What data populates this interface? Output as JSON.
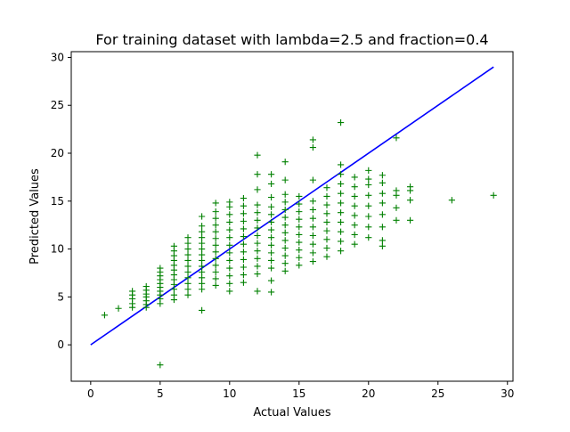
{
  "chart_data": {
    "type": "scatter",
    "title": "For training dataset with lambda=2.5 and fraction=0.4",
    "xlabel": "Actual Values",
    "ylabel": "Predicted Values",
    "xlim": [
      -1.4,
      30.4
    ],
    "ylim": [
      -3.8,
      30.6
    ],
    "xticks": [
      0,
      5,
      10,
      15,
      20,
      25,
      30
    ],
    "yticks": [
      0,
      5,
      10,
      15,
      20,
      25,
      30
    ],
    "grid": false,
    "legend": "none",
    "series": [
      {
        "kind": "points",
        "marker": "+",
        "color": "#008000",
        "points": [
          [
            1,
            3.1
          ],
          [
            2,
            3.8
          ],
          [
            3,
            3.9
          ],
          [
            3,
            4.3
          ],
          [
            3,
            4.8
          ],
          [
            3,
            5.2
          ],
          [
            3,
            5.6
          ],
          [
            4,
            3.9
          ],
          [
            4,
            4.2
          ],
          [
            4,
            4.6
          ],
          [
            4,
            5.0
          ],
          [
            4,
            5.3
          ],
          [
            4,
            5.7
          ],
          [
            4,
            6.1
          ],
          [
            5,
            -2.1
          ],
          [
            5,
            4.3
          ],
          [
            5,
            4.8
          ],
          [
            5,
            5.2
          ],
          [
            5,
            5.6
          ],
          [
            5,
            6.0
          ],
          [
            5,
            6.4
          ],
          [
            5,
            6.8
          ],
          [
            5,
            7.2
          ],
          [
            5,
            7.6
          ],
          [
            5,
            8.0
          ],
          [
            6,
            4.7
          ],
          [
            6,
            5.2
          ],
          [
            6,
            5.8
          ],
          [
            6,
            6.3
          ],
          [
            6,
            6.8
          ],
          [
            6,
            7.3
          ],
          [
            6,
            7.8
          ],
          [
            6,
            8.3
          ],
          [
            6,
            8.8
          ],
          [
            6,
            9.3
          ],
          [
            6,
            9.8
          ],
          [
            6,
            10.3
          ],
          [
            7,
            5.2
          ],
          [
            7,
            5.8
          ],
          [
            7,
            6.4
          ],
          [
            7,
            7.0
          ],
          [
            7,
            7.6
          ],
          [
            7,
            8.2
          ],
          [
            7,
            8.8
          ],
          [
            7,
            9.4
          ],
          [
            7,
            10.0
          ],
          [
            7,
            10.6
          ],
          [
            7,
            11.2
          ],
          [
            8,
            3.6
          ],
          [
            8,
            5.8
          ],
          [
            8,
            6.4
          ],
          [
            8,
            7.0
          ],
          [
            8,
            7.6
          ],
          [
            8,
            8.2
          ],
          [
            8,
            8.8
          ],
          [
            8,
            9.4
          ],
          [
            8,
            10.0
          ],
          [
            8,
            10.6
          ],
          [
            8,
            11.2
          ],
          [
            8,
            11.8
          ],
          [
            8,
            12.4
          ],
          [
            8,
            13.4
          ],
          [
            9,
            6.2
          ],
          [
            9,
            6.9
          ],
          [
            9,
            7.6
          ],
          [
            9,
            8.3
          ],
          [
            9,
            9.0
          ],
          [
            9,
            9.7
          ],
          [
            9,
            10.4
          ],
          [
            9,
            11.1
          ],
          [
            9,
            11.8
          ],
          [
            9,
            12.5
          ],
          [
            9,
            13.2
          ],
          [
            9,
            13.9
          ],
          [
            9,
            14.8
          ],
          [
            10,
            5.6
          ],
          [
            10,
            6.4
          ],
          [
            10,
            7.2
          ],
          [
            10,
            8.0
          ],
          [
            10,
            8.8
          ],
          [
            10,
            9.6
          ],
          [
            10,
            10.4
          ],
          [
            10,
            11.2
          ],
          [
            10,
            12.0
          ],
          [
            10,
            12.8
          ],
          [
            10,
            13.6
          ],
          [
            10,
            14.4
          ],
          [
            10,
            14.9
          ],
          [
            11,
            6.5
          ],
          [
            11,
            7.3
          ],
          [
            11,
            8.1
          ],
          [
            11,
            8.9
          ],
          [
            11,
            9.7
          ],
          [
            11,
            10.5
          ],
          [
            11,
            11.3
          ],
          [
            11,
            12.1
          ],
          [
            11,
            12.9
          ],
          [
            11,
            13.7
          ],
          [
            11,
            14.5
          ],
          [
            11,
            15.3
          ],
          [
            12,
            5.6
          ],
          [
            12,
            7.4
          ],
          [
            12,
            8.2
          ],
          [
            12,
            9.0
          ],
          [
            12,
            9.8
          ],
          [
            12,
            10.6
          ],
          [
            12,
            11.4
          ],
          [
            12,
            12.2
          ],
          [
            12,
            13.0
          ],
          [
            12,
            13.8
          ],
          [
            12,
            14.6
          ],
          [
            12,
            16.2
          ],
          [
            12,
            17.8
          ],
          [
            12,
            19.8
          ],
          [
            13,
            5.5
          ],
          [
            13,
            6.7
          ],
          [
            13,
            8.0
          ],
          [
            13,
            8.8
          ],
          [
            13,
            9.6
          ],
          [
            13,
            10.4
          ],
          [
            13,
            11.2
          ],
          [
            13,
            12.0
          ],
          [
            13,
            12.8
          ],
          [
            13,
            13.6
          ],
          [
            13,
            14.4
          ],
          [
            13,
            15.4
          ],
          [
            13,
            16.8
          ],
          [
            13,
            17.8
          ],
          [
            14,
            7.7
          ],
          [
            14,
            8.5
          ],
          [
            14,
            9.3
          ],
          [
            14,
            10.1
          ],
          [
            14,
            10.9
          ],
          [
            14,
            11.7
          ],
          [
            14,
            12.5
          ],
          [
            14,
            13.3
          ],
          [
            14,
            14.1
          ],
          [
            14,
            14.9
          ],
          [
            14,
            15.7
          ],
          [
            14,
            17.2
          ],
          [
            14,
            19.1
          ],
          [
            15,
            8.3
          ],
          [
            15,
            9.1
          ],
          [
            15,
            9.9
          ],
          [
            15,
            10.7
          ],
          [
            15,
            11.5
          ],
          [
            15,
            12.3
          ],
          [
            15,
            13.1
          ],
          [
            15,
            13.9
          ],
          [
            15,
            14.7
          ],
          [
            15,
            15.5
          ],
          [
            16,
            8.7
          ],
          [
            16,
            9.6
          ],
          [
            16,
            10.5
          ],
          [
            16,
            11.4
          ],
          [
            16,
            12.3
          ],
          [
            16,
            13.2
          ],
          [
            16,
            14.1
          ],
          [
            16,
            15.0
          ],
          [
            16,
            17.2
          ],
          [
            16,
            20.6
          ],
          [
            16,
            21.4
          ],
          [
            17,
            9.2
          ],
          [
            17,
            10.1
          ],
          [
            17,
            11.0
          ],
          [
            17,
            11.9
          ],
          [
            17,
            12.8
          ],
          [
            17,
            13.7
          ],
          [
            17,
            14.6
          ],
          [
            17,
            15.5
          ],
          [
            17,
            16.4
          ],
          [
            18,
            9.8
          ],
          [
            18,
            10.8
          ],
          [
            18,
            11.8
          ],
          [
            18,
            12.8
          ],
          [
            18,
            13.8
          ],
          [
            18,
            14.8
          ],
          [
            18,
            15.8
          ],
          [
            18,
            16.8
          ],
          [
            18,
            17.8
          ],
          [
            18,
            18.8
          ],
          [
            18,
            23.2
          ],
          [
            19,
            10.5
          ],
          [
            19,
            11.5
          ],
          [
            19,
            12.5
          ],
          [
            19,
            13.5
          ],
          [
            19,
            14.5
          ],
          [
            19,
            15.5
          ],
          [
            19,
            16.5
          ],
          [
            19,
            17.5
          ],
          [
            20,
            11.2
          ],
          [
            20,
            12.3
          ],
          [
            20,
            13.4
          ],
          [
            20,
            14.5
          ],
          [
            20,
            15.6
          ],
          [
            20,
            16.7
          ],
          [
            20,
            17.3
          ],
          [
            20,
            18.2
          ],
          [
            21,
            10.3
          ],
          [
            21,
            10.9
          ],
          [
            21,
            12.3
          ],
          [
            21,
            13.6
          ],
          [
            21,
            14.8
          ],
          [
            21,
            15.8
          ],
          [
            21,
            16.9
          ],
          [
            21,
            17.7
          ],
          [
            22,
            13.0
          ],
          [
            22,
            14.3
          ],
          [
            22,
            15.6
          ],
          [
            22,
            16.1
          ],
          [
            22,
            21.6
          ],
          [
            23,
            13.0
          ],
          [
            23,
            15.1
          ],
          [
            23,
            16.1
          ],
          [
            23,
            16.5
          ],
          [
            26,
            15.1
          ],
          [
            29,
            15.6
          ]
        ]
      },
      {
        "kind": "line",
        "color": "#0000ff",
        "x": [
          0,
          29
        ],
        "y": [
          0,
          29
        ]
      }
    ]
  }
}
